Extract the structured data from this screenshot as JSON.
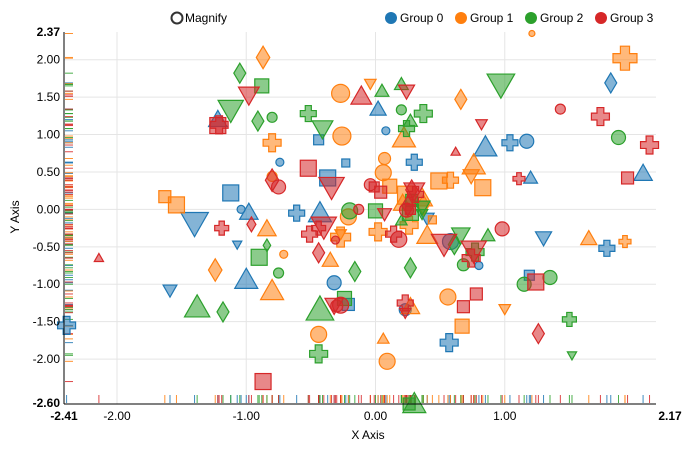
{
  "magnify_label": "Magnify",
  "chart_data": {
    "type": "scatter",
    "title": "",
    "xlabel": "X Axis",
    "ylabel": "Y Axis",
    "xlim": [
      -2.41,
      2.17
    ],
    "ylim": [
      -2.6,
      2.37
    ],
    "x_ticks": [
      -2.0,
      -1.0,
      0.0,
      1.0
    ],
    "x_tick_labels": [
      "-2.00",
      "-1.00",
      "0.00",
      "1.00"
    ],
    "x_min_label": "-2.41",
    "x_max_label": "2.17",
    "y_ticks": [
      2.0,
      1.5,
      1.0,
      0.5,
      0.0,
      -0.5,
      -1.0,
      -1.5,
      -2.0
    ],
    "y_tick_labels": [
      "2.00",
      "1.50",
      "1.00",
      "0.50",
      "0.00",
      "-0.50",
      "-1.00",
      "-1.50",
      "-2.00"
    ],
    "y_min_label": "-2.60",
    "y_max_label": "2.37",
    "grid": true,
    "legend_position": "top",
    "rug_plots": true,
    "series": [
      {
        "name": "Group 0",
        "color": "#1f77b4",
        "points": [
          [
            -1.22,
            1.2,
            "triangle-up",
            8
          ],
          [
            -1.12,
            0.22,
            "square",
            8
          ],
          [
            -1.04,
            0.0,
            "circle",
            4
          ],
          [
            -1.0,
            -0.94,
            "triangle-up",
            10
          ],
          [
            -0.98,
            -0.04,
            "triangle-up",
            8
          ],
          [
            -0.74,
            0.63,
            "circle",
            4
          ],
          [
            -0.61,
            -0.05,
            "cross",
            8
          ],
          [
            -0.44,
            0.93,
            "square",
            5
          ],
          [
            -0.37,
            0.42,
            "square",
            8
          ],
          [
            -0.32,
            -0.98,
            "circle",
            7
          ],
          [
            -0.23,
            0.62,
            "square",
            4
          ],
          [
            -0.21,
            -1.27,
            "square",
            6
          ],
          [
            0.02,
            1.34,
            "triangle-up",
            7
          ],
          [
            0.08,
            1.05,
            "circle",
            4
          ],
          [
            0.3,
            0.63,
            "cross",
            8
          ],
          [
            0.23,
            -1.34,
            "circle",
            6
          ],
          [
            0.4,
            -0.12,
            "triangle-down",
            6
          ],
          [
            0.58,
            -0.43,
            "circle",
            8
          ],
          [
            0.8,
            -0.75,
            "circle",
            4
          ],
          [
            0.85,
            0.83,
            "triangle-up",
            10
          ],
          [
            1.04,
            0.89,
            "cross",
            8
          ],
          [
            1.17,
            0.91,
            "circle",
            7
          ],
          [
            1.2,
            0.42,
            "triangle-up",
            6
          ],
          [
            1.3,
            -0.38,
            "triangle-down",
            7
          ],
          [
            1.19,
            -0.88,
            "square",
            5
          ],
          [
            1.82,
            1.69,
            "diamond",
            8
          ],
          [
            2.07,
            0.48,
            "triangle-up",
            8
          ],
          [
            1.79,
            -0.52,
            "cross",
            8
          ],
          [
            0.57,
            -1.78,
            "cross",
            9
          ],
          [
            -2.39,
            -1.55,
            "cross",
            9
          ],
          [
            -1.59,
            -1.08,
            "triangle-down",
            6
          ],
          [
            -1.4,
            -0.18,
            "triangle-down",
            12
          ],
          [
            -1.07,
            -0.47,
            "triangle-down",
            4
          ],
          [
            -0.43,
            -0.05,
            "triangle-up",
            10
          ]
        ]
      },
      {
        "name": "Group 1",
        "color": "#ff7f0e",
        "points": [
          [
            -1.54,
            0.06,
            "square",
            8
          ],
          [
            -1.63,
            0.17,
            "square",
            6
          ],
          [
            -0.87,
            2.03,
            "diamond",
            9
          ],
          [
            -0.84,
            -0.26,
            "triangle-up",
            8
          ],
          [
            -0.8,
            0.89,
            "cross",
            9
          ],
          [
            -0.8,
            -1.09,
            "triangle-up",
            10
          ],
          [
            -0.27,
            -0.33,
            "triangle-down",
            5
          ],
          [
            -0.27,
            -0.37,
            "cross",
            10
          ],
          [
            -0.27,
            1.55,
            "circle",
            9
          ],
          [
            -0.26,
            0.98,
            "circle",
            9
          ],
          [
            -0.21,
            -0.1,
            "circle",
            8
          ],
          [
            -0.04,
            1.68,
            "triangle-down",
            5
          ],
          [
            0.02,
            -0.3,
            "cross",
            9
          ],
          [
            0.06,
            -1.73,
            "triangle-up",
            5
          ],
          [
            0.06,
            0.49,
            "circle",
            8
          ],
          [
            0.09,
            -2.03,
            "circle",
            8
          ],
          [
            0.07,
            0.68,
            "circle",
            6
          ],
          [
            0.11,
            0.31,
            "square",
            7
          ],
          [
            0.22,
            0.95,
            "triangle-up",
            10
          ],
          [
            0.26,
            -0.21,
            "cross",
            9
          ],
          [
            0.27,
            -1.3,
            "triangle-up",
            8
          ],
          [
            0.44,
            -0.14,
            "square",
            4
          ],
          [
            0.36,
            0.15,
            "triangle-up",
            9
          ],
          [
            0.37,
            0.06,
            "diamond",
            8
          ],
          [
            0.4,
            -0.35,
            "triangle-up",
            9
          ],
          [
            0.49,
            0.38,
            "square",
            8
          ],
          [
            0.56,
            -1.17,
            "circle",
            8
          ],
          [
            0.67,
            -1.56,
            "square",
            7
          ],
          [
            0.66,
            1.47,
            "diamond",
            8
          ],
          [
            0.74,
            0.45,
            "triangle-down",
            7
          ],
          [
            0.76,
            0.59,
            "triangle-up",
            10
          ],
          [
            0.83,
            0.29,
            "square",
            8
          ],
          [
            1.0,
            -1.33,
            "triangle-down",
            5
          ],
          [
            1.21,
            2.35,
            "circle",
            3
          ],
          [
            1.65,
            -0.39,
            "triangle-up",
            7
          ],
          [
            1.93,
            -0.43,
            "cross",
            6
          ],
          [
            1.93,
            2.02,
            "cross",
            12
          ],
          [
            -0.71,
            -0.6,
            "circle",
            4
          ],
          [
            -0.8,
            0.44,
            "circle",
            5
          ],
          [
            -1.24,
            -0.81,
            "diamond",
            9
          ],
          [
            -0.35,
            -0.68,
            "triangle-up",
            7
          ],
          [
            -0.44,
            -1.67,
            "circle",
            8
          ],
          [
            0.24,
            0.19,
            "square",
            9
          ],
          [
            0.58,
            0.39,
            "cross",
            8
          ],
          [
            0.21,
            0.08,
            "triangle-up",
            8
          ]
        ]
      },
      {
        "name": "Group 2",
        "color": "#2ca02c",
        "points": [
          [
            -1.38,
            -1.31,
            "triangle-up",
            11
          ],
          [
            -1.18,
            -1.37,
            "diamond",
            8
          ],
          [
            -1.05,
            1.82,
            "diamond",
            8
          ],
          [
            -1.12,
            1.33,
            "triangle-down",
            11
          ],
          [
            -0.88,
            1.65,
            "square",
            7
          ],
          [
            -0.91,
            1.18,
            "diamond",
            8
          ],
          [
            -0.8,
            1.23,
            "circle",
            5
          ],
          [
            -0.9,
            -0.64,
            "square",
            8
          ],
          [
            -0.75,
            -0.85,
            "circle",
            5
          ],
          [
            -0.52,
            1.28,
            "cross",
            8
          ],
          [
            -0.41,
            1.08,
            "triangle-down",
            9
          ],
          [
            -0.43,
            -1.34,
            "triangle-up",
            12
          ],
          [
            -0.44,
            -1.93,
            "cross",
            9
          ],
          [
            -0.24,
            -1.19,
            "square",
            7
          ],
          [
            -0.16,
            -0.83,
            "diamond",
            8
          ],
          [
            -0.2,
            -0.02,
            "circle",
            8
          ],
          [
            0.0,
            -0.02,
            "square",
            7
          ],
          [
            0.2,
            1.67,
            "triangle-up",
            6
          ],
          [
            0.2,
            1.33,
            "circle",
            5
          ],
          [
            0.24,
            1.08,
            "cross",
            8
          ],
          [
            0.27,
            1.18,
            "triangle-up",
            6
          ],
          [
            0.28,
            0.12,
            "square",
            6
          ],
          [
            0.27,
            -0.04,
            "square",
            8
          ],
          [
            0.27,
            -0.78,
            "diamond",
            8
          ],
          [
            0.3,
            -2.6,
            "triangle-up",
            10
          ],
          [
            0.37,
            1.28,
            "cross",
            9
          ],
          [
            0.36,
            0.03,
            "triangle-down",
            7
          ],
          [
            0.61,
            -0.47,
            "diamond",
            8
          ],
          [
            0.66,
            -0.34,
            "triangle-down",
            8
          ],
          [
            0.68,
            -0.74,
            "circle",
            6
          ],
          [
            0.77,
            -0.57,
            "cross",
            9
          ],
          [
            0.87,
            -0.35,
            "triangle-up",
            6
          ],
          [
            0.97,
            1.67,
            "triangle-down",
            12
          ],
          [
            1.15,
            -1.0,
            "circle",
            7
          ],
          [
            1.35,
            -0.91,
            "circle",
            7
          ],
          [
            1.5,
            -1.47,
            "cross",
            7
          ],
          [
            1.52,
            -1.95,
            "triangle-down",
            4
          ],
          [
            1.88,
            0.96,
            "circle",
            7
          ],
          [
            0.2,
            -0.15,
            "triangle-up",
            5
          ],
          [
            0.36,
            -0.06,
            "triangle-down",
            5
          ],
          [
            0.05,
            1.58,
            "triangle-up",
            6
          ],
          [
            0.26,
            -2.6,
            "square",
            6
          ],
          [
            -0.84,
            -0.48,
            "diamond",
            5
          ]
        ]
      },
      {
        "name": "Group 3",
        "color": "#d62728",
        "points": [
          [
            -2.14,
            -0.65,
            "triangle-up",
            4
          ],
          [
            -1.19,
            -0.25,
            "cross",
            7
          ],
          [
            -1.22,
            1.12,
            "square",
            8
          ],
          [
            -1.21,
            1.13,
            "cross",
            9
          ],
          [
            -0.98,
            1.53,
            "triangle-down",
            9
          ],
          [
            -0.96,
            -0.2,
            "diamond",
            6
          ],
          [
            -0.8,
            0.39,
            "diamond",
            9
          ],
          [
            -0.75,
            0.3,
            "circle",
            7
          ],
          [
            -0.87,
            -2.3,
            "square",
            8
          ],
          [
            -0.52,
            0.55,
            "square",
            8
          ],
          [
            -0.51,
            -0.33,
            "cross",
            8
          ],
          [
            -0.4,
            -0.23,
            "triangle-down",
            11
          ],
          [
            -0.31,
            -0.41,
            "circle",
            4
          ],
          [
            -0.32,
            -1.28,
            "triangle-down",
            8
          ],
          [
            -0.34,
            0.3,
            "triangle-down",
            11
          ],
          [
            -0.44,
            -0.25,
            "cross",
            7
          ],
          [
            -0.44,
            -0.58,
            "diamond",
            8
          ],
          [
            -0.27,
            -1.28,
            "circle",
            8
          ],
          [
            -0.3,
            -1.29,
            "circle",
            6
          ],
          [
            -0.11,
            1.51,
            "triangle-up",
            9
          ],
          [
            -0.01,
            0.3,
            "square",
            5
          ],
          [
            -0.13,
            0.0,
            "circle",
            5
          ],
          [
            0.04,
            0.23,
            "square",
            6
          ],
          [
            0.07,
            -0.06,
            "triangle-down",
            6
          ],
          [
            0.14,
            -0.33,
            "cross",
            8
          ],
          [
            0.18,
            -0.4,
            "circle",
            8
          ],
          [
            0.23,
            -1.25,
            "cross",
            8
          ],
          [
            0.23,
            -1.38,
            "triangle-down",
            5
          ],
          [
            0.24,
            -0.01,
            "circle",
            7
          ],
          [
            0.25,
            0.05,
            "diamond",
            8
          ],
          [
            0.24,
            1.58,
            "triangle-down",
            7
          ],
          [
            0.3,
            0.25,
            "triangle-down",
            9
          ],
          [
            0.31,
            0.2,
            "cross",
            8
          ],
          [
            0.28,
            0.26,
            "diamond",
            8
          ],
          [
            0.53,
            -0.46,
            "triangle-down",
            11
          ],
          [
            0.62,
            0.77,
            "triangle-up",
            4
          ],
          [
            0.68,
            -1.3,
            "square",
            6
          ],
          [
            0.76,
            -0.55,
            "triangle-down",
            11
          ],
          [
            0.78,
            -1.13,
            "square",
            6
          ],
          [
            0.82,
            1.14,
            "triangle-down",
            5
          ],
          [
            0.98,
            -0.26,
            "circle",
            7
          ],
          [
            1.11,
            0.41,
            "cross",
            6
          ],
          [
            1.24,
            -0.97,
            "square",
            8
          ],
          [
            1.26,
            -1.66,
            "diamond",
            8
          ],
          [
            1.43,
            1.34,
            "circle",
            5
          ],
          [
            1.74,
            1.24,
            "cross",
            9
          ],
          [
            1.95,
            0.42,
            "square",
            6
          ],
          [
            2.12,
            0.86,
            "cross",
            9
          ],
          [
            0.27,
            0.0,
            "square",
            5
          ],
          [
            -0.04,
            0.33,
            "circle",
            6
          ],
          [
            0.74,
            -0.65,
            "cross",
            9
          ]
        ]
      }
    ]
  }
}
